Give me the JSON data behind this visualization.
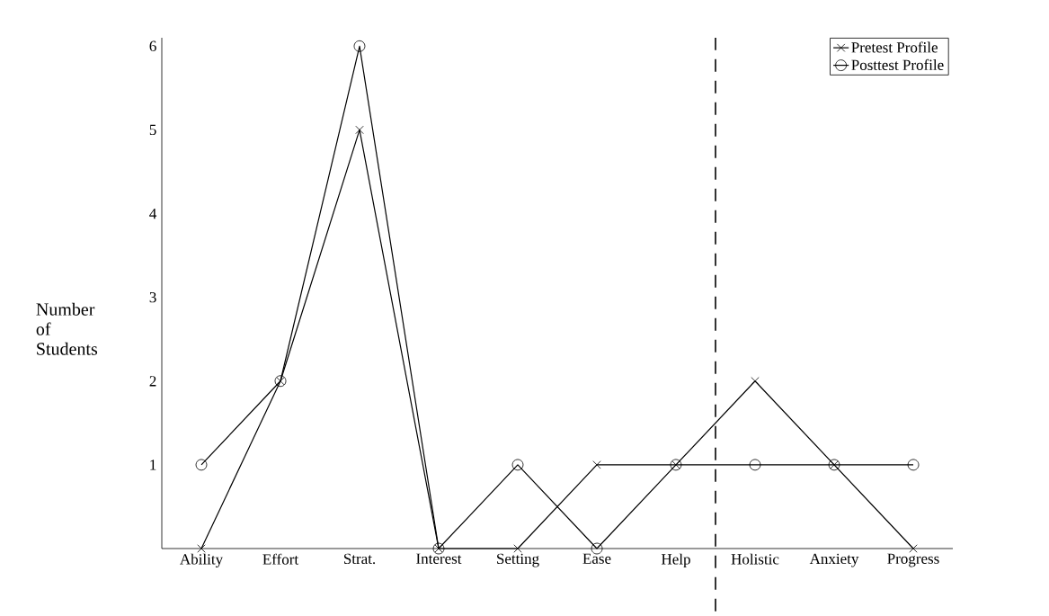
{
  "chart_data": {
    "type": "line",
    "ylabel": "Number of Students",
    "categories": [
      "Ability",
      "Effort",
      "Strat.",
      "Interest",
      "Setting",
      "Ease",
      "Help",
      "Holistic",
      "Anxiety",
      "Progress"
    ],
    "series": [
      {
        "name": "Pretest Profile",
        "color": "#000000",
        "marker": "cross",
        "values": [
          0,
          2,
          5,
          0,
          0,
          1,
          1,
          2,
          1,
          0
        ]
      },
      {
        "name": "Posttest Profile",
        "color": "#000000",
        "marker": "circle",
        "values": [
          1,
          2,
          6,
          0,
          1,
          0,
          1,
          1,
          1,
          1
        ]
      }
    ],
    "ylim": [
      0,
      6.1
    ],
    "yticks": [
      1,
      2,
      3,
      4,
      5,
      6
    ],
    "legend": "top right",
    "grid": false,
    "line_style": "solid"
  }
}
